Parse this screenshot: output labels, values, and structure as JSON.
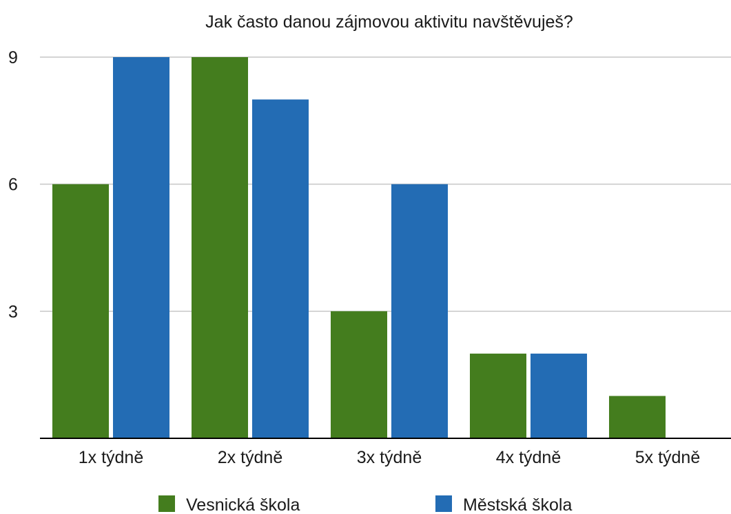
{
  "chart_data": {
    "type": "bar",
    "title": "Jak často danou zájmovou aktivitu navštěvuješ?",
    "xlabel": "",
    "ylabel": "",
    "categories": [
      "1x týdně",
      "2x týdně",
      "3x týdně",
      "4x týdně",
      "5x týdně"
    ],
    "series": [
      {
        "name": "Vesnická škola",
        "values": [
          6,
          9,
          3,
          2,
          1
        ],
        "color": "#447d1e"
      },
      {
        "name": "Městská škola",
        "values": [
          9,
          8,
          6,
          2,
          0
        ],
        "color": "#236cb4"
      }
    ],
    "ylim": [
      0,
      9
    ],
    "yticks": [
      3,
      6,
      9
    ],
    "grid": true,
    "legend": "bottom"
  }
}
